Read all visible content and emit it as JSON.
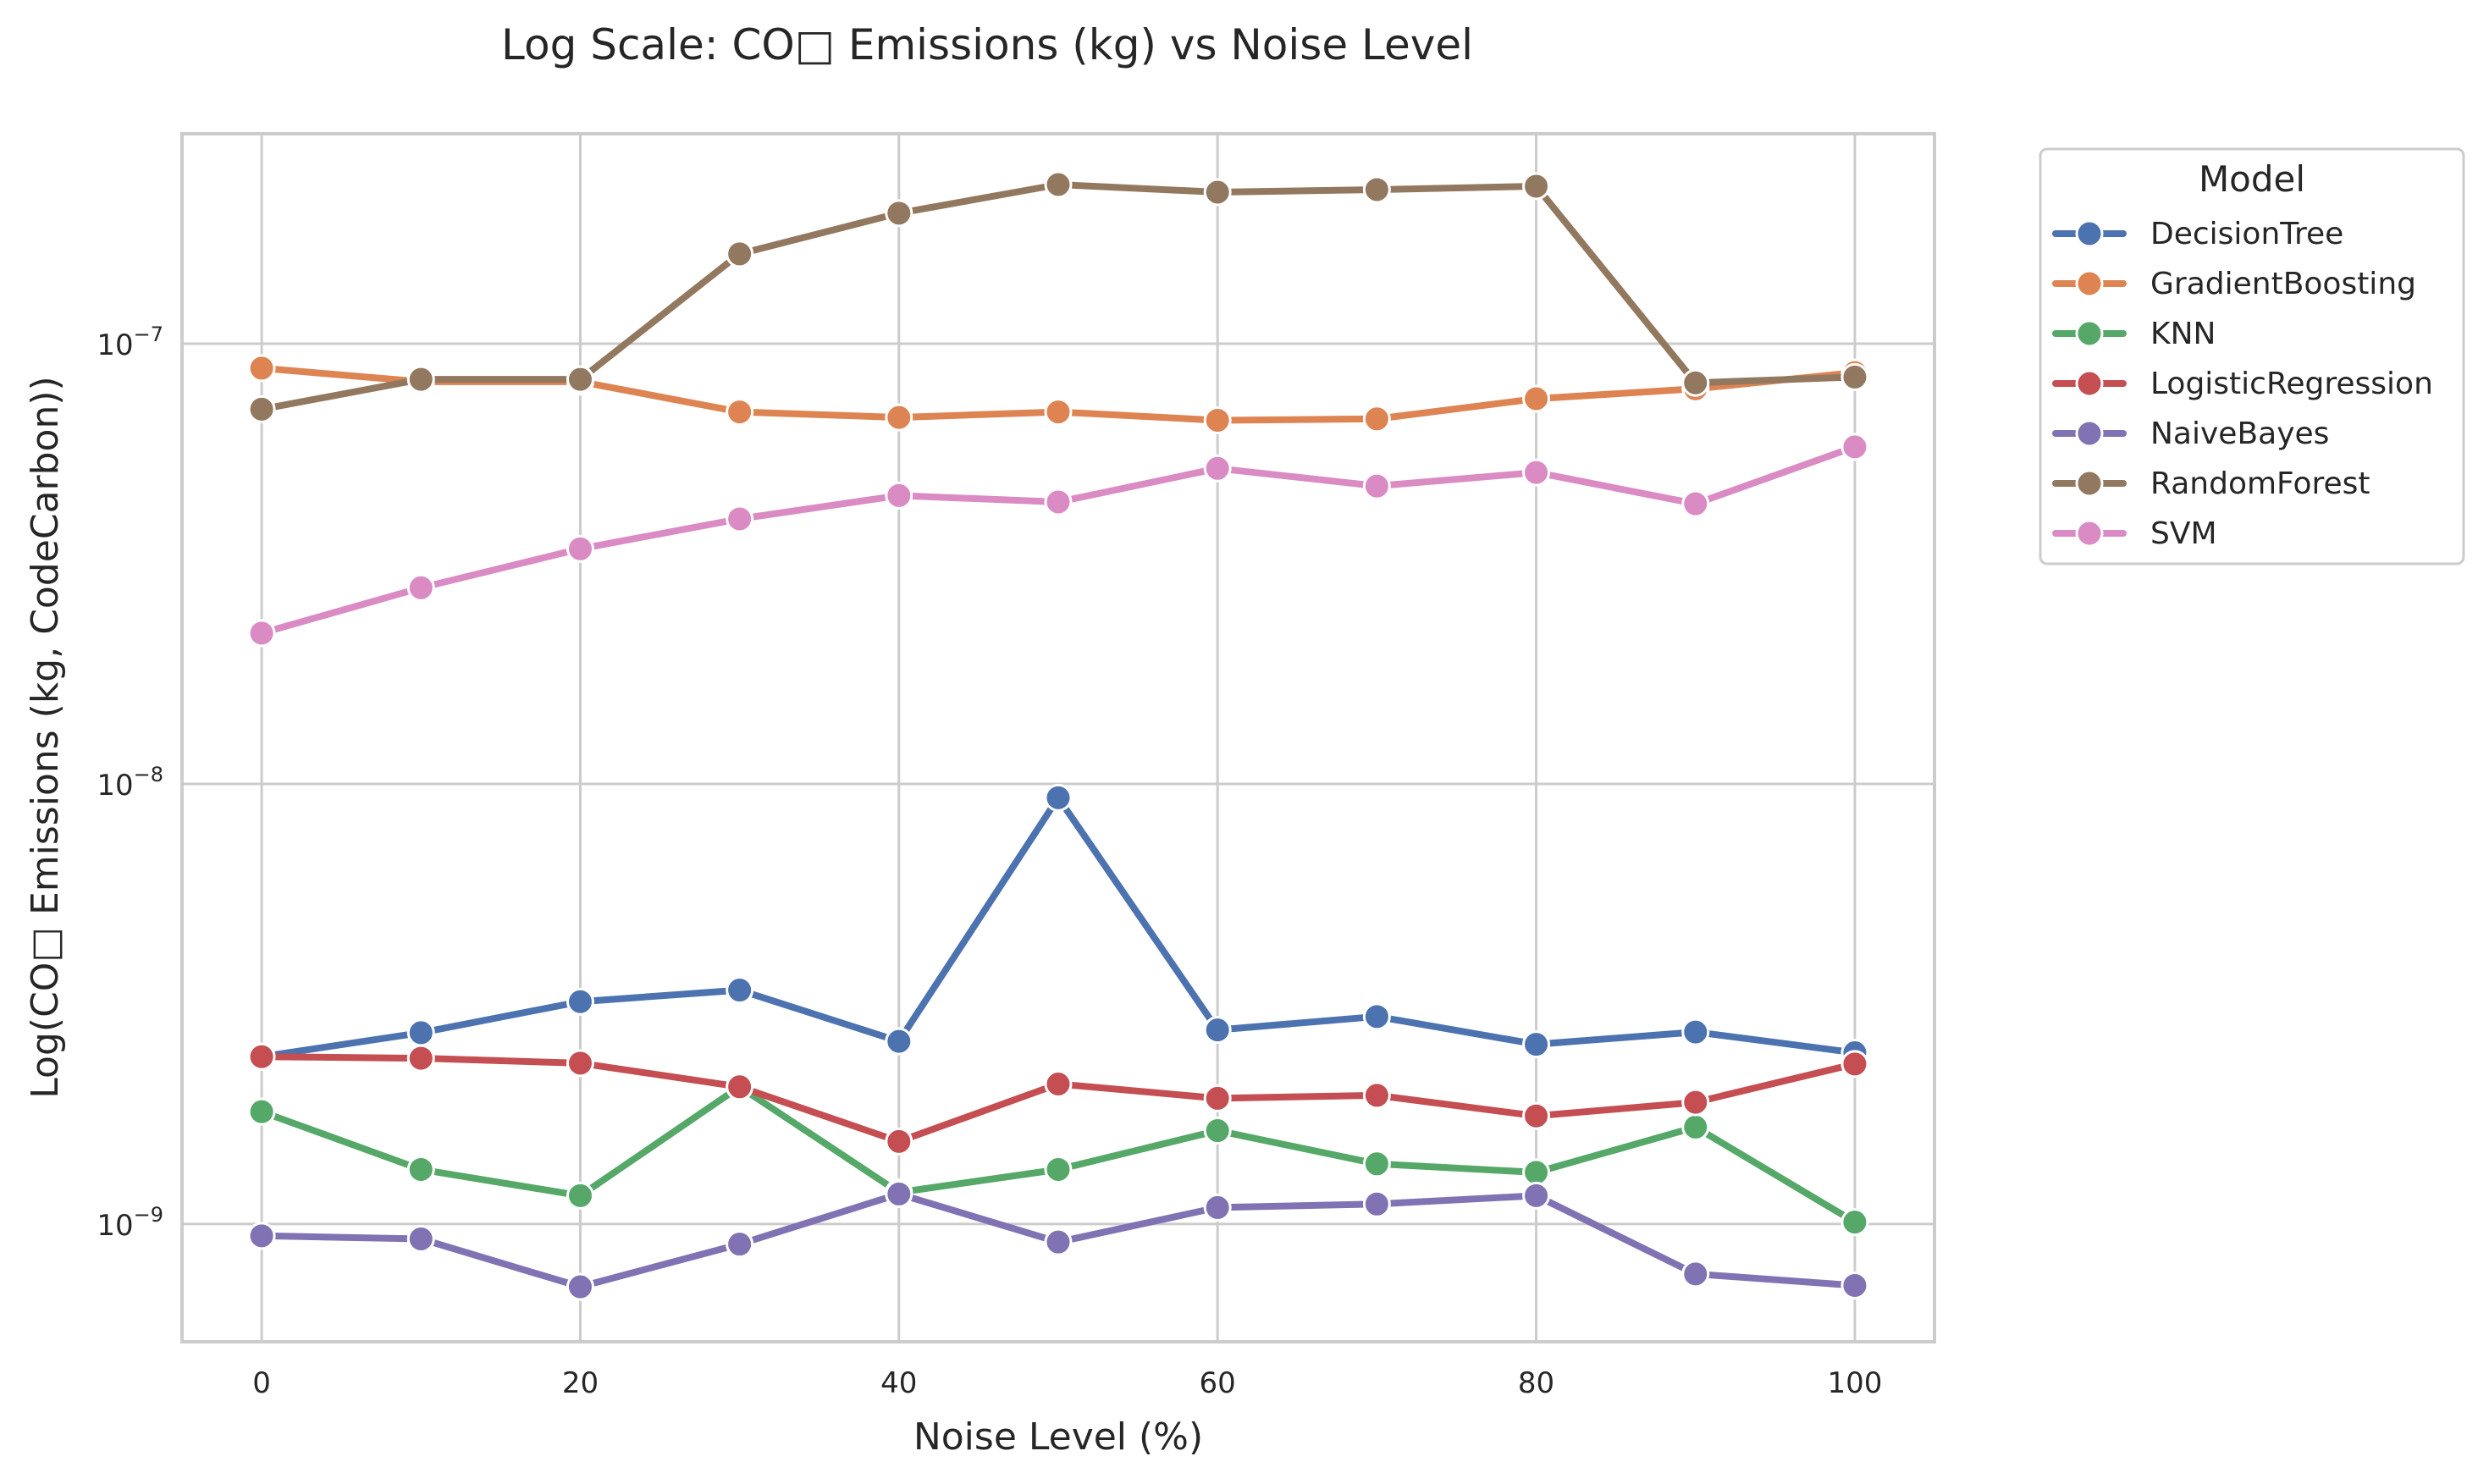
{
  "chart_data": {
    "type": "line",
    "title": "Log Scale: CO□ Emissions (kg) vs Noise Level",
    "xlabel": "Noise Level (%)",
    "ylabel": "Log(CO□ Emissions (kg, CodeCarbon))",
    "yscale": "log",
    "xlim": [
      -5,
      105
    ],
    "ylim": [
      5.4e-10,
      3e-07
    ],
    "x_ticks": [
      0,
      20,
      40,
      60,
      80,
      100
    ],
    "y_ticks": [
      {
        "value": 1e-09,
        "mantissa": "10",
        "exponent": "−9"
      },
      {
        "value": 1e-08,
        "mantissa": "10",
        "exponent": "−8"
      },
      {
        "value": 1e-07,
        "mantissa": "10",
        "exponent": "−7"
      }
    ],
    "grid": true,
    "legend": {
      "title": "Model",
      "placement": "outside-right-top"
    },
    "x": [
      0,
      10,
      20,
      30,
      40,
      50,
      60,
      70,
      80,
      90,
      100
    ],
    "series": [
      {
        "name": "DecisionTree",
        "color": "#4c72b0",
        "values": [
          2.4e-09,
          2.72e-09,
          3.2e-09,
          3.4e-09,
          2.6e-09,
          9.3e-09,
          2.76e-09,
          2.96e-09,
          2.56e-09,
          2.73e-09,
          2.45e-09
        ]
      },
      {
        "name": "GradientBoosting",
        "color": "#dd8452",
        "values": [
          8.8e-08,
          8.2e-08,
          8.2e-08,
          7e-08,
          6.8e-08,
          7e-08,
          6.7e-08,
          6.75e-08,
          7.5e-08,
          7.9e-08,
          8.6e-08
        ]
      },
      {
        "name": "KNN",
        "color": "#55a868",
        "values": [
          1.8e-09,
          1.33e-09,
          1.16e-09,
          2.05e-09,
          1.18e-09,
          1.33e-09,
          1.63e-09,
          1.37e-09,
          1.31e-09,
          1.66e-09,
          1.01e-09
        ]
      },
      {
        "name": "LogisticRegression",
        "color": "#c44e52",
        "values": [
          2.4e-09,
          2.38e-09,
          2.32e-09,
          2.05e-09,
          1.54e-09,
          2.08e-09,
          1.93e-09,
          1.96e-09,
          1.76e-09,
          1.89e-09,
          2.31e-09
        ]
      },
      {
        "name": "NaiveBayes",
        "color": "#8172b3",
        "values": [
          9.4e-10,
          9.25e-10,
          7.2e-10,
          9e-10,
          1.17e-09,
          9.1e-10,
          1.09e-09,
          1.11e-09,
          1.16e-09,
          7.7e-10,
          7.25e-10
        ]
      },
      {
        "name": "RandomForest",
        "color": "#937860",
        "values": [
          7.1e-08,
          8.3e-08,
          8.3e-08,
          1.6e-07,
          1.98e-07,
          2.3e-07,
          2.21e-07,
          2.24e-07,
          2.28e-07,
          8.15e-08,
          8.4e-08
        ]
      },
      {
        "name": "SVM",
        "color": "#da8bc3",
        "values": [
          2.2e-08,
          2.79e-08,
          3.42e-08,
          4e-08,
          4.52e-08,
          4.37e-08,
          5.21e-08,
          4.75e-08,
          5.1e-08,
          4.33e-08,
          5.83e-08
        ]
      }
    ]
  }
}
